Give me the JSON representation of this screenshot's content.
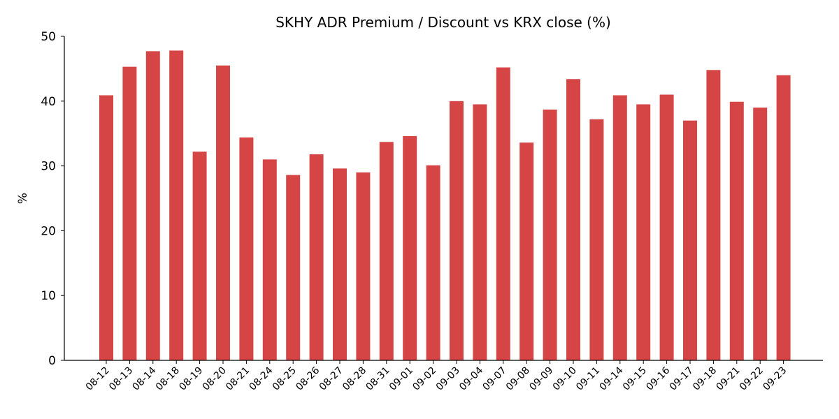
{
  "chart_data": {
    "type": "bar",
    "title": "SKHY ADR Premium / Discount vs KRX close (%)",
    "xlabel": "",
    "ylabel": "%",
    "ylim": [
      0,
      50
    ],
    "yticks": [
      0,
      10,
      20,
      30,
      40,
      50
    ],
    "grid": false,
    "legend": "none",
    "bar_color": "#d64545",
    "categories": [
      "08-12",
      "08-13",
      "08-14",
      "08-18",
      "08-19",
      "08-20",
      "08-21",
      "08-24",
      "08-25",
      "08-26",
      "08-27",
      "08-28",
      "08-31",
      "09-01",
      "09-02",
      "09-03",
      "09-04",
      "09-07",
      "09-08",
      "09-09",
      "09-10",
      "09-11",
      "09-14",
      "09-15",
      "09-16",
      "09-17",
      "09-18",
      "09-21",
      "09-22",
      "09-23"
    ],
    "values": [
      40.9,
      45.3,
      47.7,
      47.8,
      32.2,
      45.5,
      34.4,
      31.0,
      28.6,
      31.8,
      29.6,
      29.0,
      33.7,
      34.6,
      30.1,
      40.0,
      39.5,
      45.2,
      33.6,
      38.7,
      43.4,
      37.2,
      40.9,
      39.5,
      41.0,
      37.0,
      44.8,
      39.9,
      39.0,
      44.0
    ]
  }
}
